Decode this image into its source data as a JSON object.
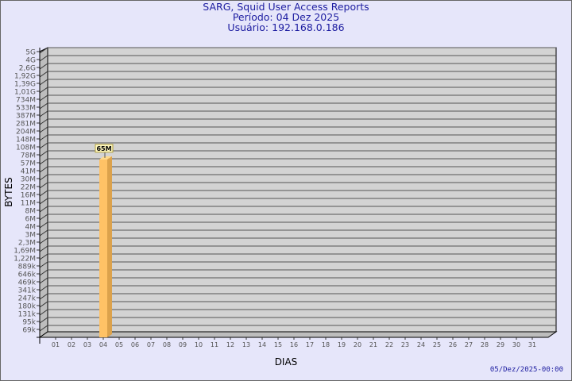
{
  "chart_data": {
    "type": "bar",
    "title": "SARG, Squid User Access Reports",
    "subtitle_lines": [
      "Período: 04 Dez 2025",
      "Usuário: 192.168.0.186"
    ],
    "xlabel": "DIAS",
    "ylabel": "BYTES",
    "scale": "log",
    "grid": true,
    "categories": [
      "01",
      "02",
      "03",
      "04",
      "05",
      "06",
      "07",
      "08",
      "09",
      "10",
      "11",
      "12",
      "13",
      "14",
      "15",
      "16",
      "17",
      "18",
      "19",
      "20",
      "21",
      "22",
      "23",
      "24",
      "25",
      "26",
      "27",
      "28",
      "29",
      "30",
      "31"
    ],
    "y_ticks": [
      "5G",
      "4G",
      "2,6G",
      "1,92G",
      "1,39G",
      "1,01G",
      "734M",
      "533M",
      "387M",
      "281M",
      "204M",
      "148M",
      "108M",
      "78M",
      "57M",
      "41M",
      "30M",
      "22M",
      "16M",
      "11M",
      "8M",
      "6M",
      "4M",
      "3M",
      "2,3M",
      "1,69M",
      "1,22M",
      "889k",
      "646k",
      "469k",
      "341k",
      "247k",
      "180k",
      "131k",
      "95k",
      "69k"
    ],
    "series": [
      {
        "values": [
          null,
          null,
          null,
          65000000,
          null,
          null,
          null,
          null,
          null,
          null,
          null,
          null,
          null,
          null,
          null,
          null,
          null,
          null,
          null,
          null,
          null,
          null,
          null,
          null,
          null,
          null,
          null,
          null,
          null,
          null,
          null
        ],
        "labels": {
          "04": "65M"
        }
      }
    ],
    "colors": {
      "bar_front": "#ffc266",
      "bar_side": "#dca24c",
      "wall": "#d3d3d3",
      "background": "#e6e6fa",
      "text": "#1c1ca0"
    }
  },
  "footer": {
    "timestamp": "05/Dez/2025-00:00"
  }
}
